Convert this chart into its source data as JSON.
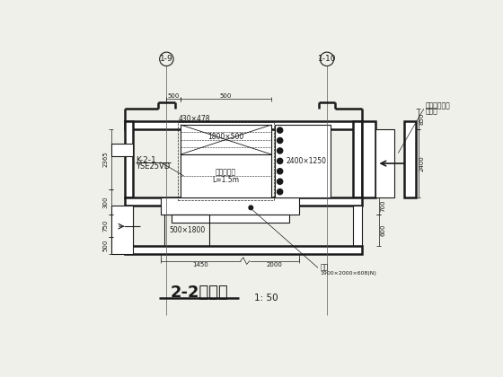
{
  "bg_color": "#f0f0eb",
  "line_color": "#1a1a1a",
  "title": "2-2剖面图",
  "scale": "1: 50",
  "labels": {
    "k21": "K-2-1",
    "yse": "YSE25VD",
    "dim_ahu_top": "430×478",
    "dim_ahu_mid": "1800×500",
    "dim_duct": "2400×1250",
    "dim_pipe": "500×1800",
    "sound": "消声连序器",
    "sound_l": "L=1.5m",
    "left_dim1": "2365",
    "left_dim2": "300",
    "left_dim3": "750",
    "left_dim4": "500",
    "top_dim1": "500",
    "top_dim2": "500",
    "right_top_dim": "850",
    "right_main_dim": "2400",
    "right_dim1": "700",
    "right_dim2": "600",
    "bottom_dim1": "1450",
    "bottom_dim2": "2000",
    "col_left": "1-9",
    "col_right": "1-10",
    "louver_label1": "断面百叶风口",
    "louver_label2": "调频器",
    "louver_size": "1900×2000×608(N)",
    "drain": "地漏"
  }
}
